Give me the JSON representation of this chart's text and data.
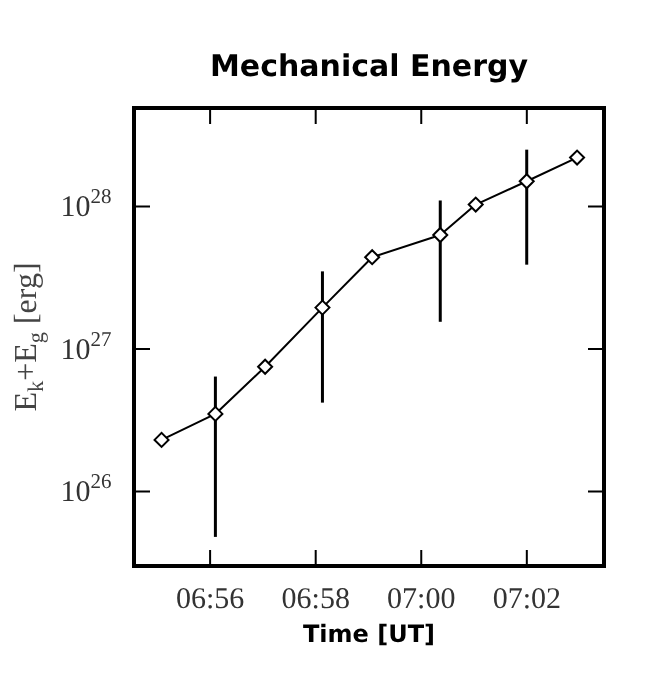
{
  "chart_data": {
    "type": "line",
    "title": "Mechanical Energy",
    "xlabel": "Time [UT]",
    "ylabel": "E$_{k}$+E$_{g}$ [erg]",
    "x": [
      6.918,
      6.935,
      6.9507,
      6.9688,
      6.9845,
      7.006,
      7.0172,
      7.0333,
      7.0492
    ],
    "series": [
      {
        "color": "#000000",
        "values": [
          2.3e+26,
          3.5e+26,
          7.5e+26,
          1.95e+27,
          4.4e+27,
          6.3e+27,
          1.03e+28,
          1.5e+28,
          2.2e+28
        ],
        "errors": [
          null,
          [
            4.8e+25,
            6.4e+26
          ],
          null,
          [
            4.2e+26,
            3.5e+27
          ],
          null,
          [
            1.55e+27,
            1.1e+28
          ],
          null,
          [
            3.9e+27,
            2.5e+28
          ],
          null
        ]
      }
    ],
    "log": "y",
    "xlim": [
      6.9093,
      7.0577
    ],
    "ylim": [
      3e+25,
      4.9e+28
    ],
    "xticks": [
      {
        "value": 6.93333,
        "label": "06:56"
      },
      {
        "value": 6.96667,
        "label": "06:58"
      },
      {
        "value": 7,
        "label": "07:00"
      },
      {
        "value": 7.03333,
        "label": "07:02"
      }
    ],
    "yticks": [
      {
        "value": 1e+26,
        "label": "10$^{26}$"
      },
      {
        "value": 1e+27,
        "label": "10$^{27}$"
      },
      {
        "value": 1e+28,
        "label": "10$^{28}$"
      }
    ],
    "marker": "diamond",
    "line_style": "solid",
    "grid": false,
    "legend": false
  }
}
